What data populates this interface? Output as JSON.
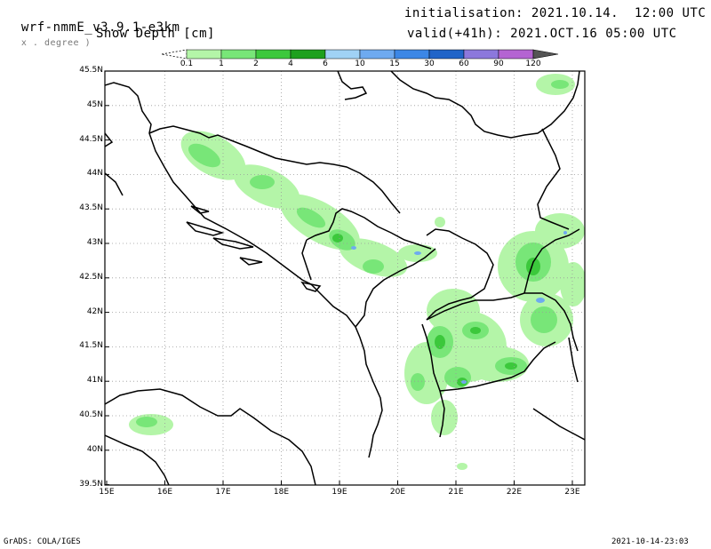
{
  "header": {
    "model": "wrf-nmmE_v3.9.1-e3km",
    "projection": "x . degree )",
    "field": "Snow Depth [cm]",
    "init": "initialisation: 2021.10.14.  12:00 UTC",
    "valid": "valid(+41h): 2021.OCT.16 05:00 UTC"
  },
  "colorbar": {
    "labels": [
      "0.1",
      "1",
      "2",
      "4",
      "6",
      "10",
      "15",
      "30",
      "60",
      "90",
      "120"
    ],
    "colors": [
      "#b4f5a8",
      "#78e678",
      "#3cc83c",
      "#1ea01e",
      "#a0d2f5",
      "#6eaaf0",
      "#3c87e6",
      "#2064c8",
      "#8c78dc",
      "#b464d2",
      "#555555"
    ]
  },
  "map": {
    "lat_labels": [
      "45.5N",
      "45N",
      "44.5N",
      "44N",
      "43.5N",
      "43N",
      "42.5N",
      "42N",
      "41.5N",
      "41N",
      "40.5N",
      "40N",
      "39.5N"
    ],
    "lon_labels": [
      "15E",
      "16E",
      "17E",
      "18E",
      "19E",
      "20E",
      "21E",
      "22E",
      "23E"
    ]
  },
  "footer": {
    "left": "GrADS: COLA/IGES",
    "right": "2021-10-14-23:03"
  }
}
